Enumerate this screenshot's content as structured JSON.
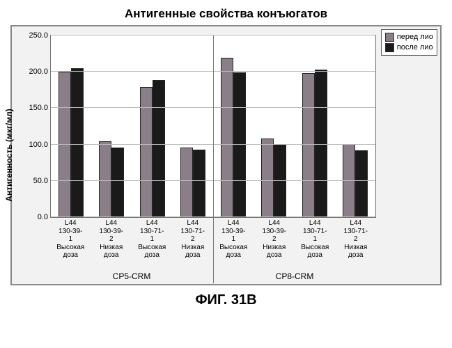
{
  "title": "Антигенные свойства конъюгатов",
  "footer": "ФИГ. 31B",
  "y_axis": {
    "label": "Антигенность (мкг/мл)",
    "min": 0,
    "max": 250,
    "ticks": [
      "0.0",
      "50.0",
      "100.0",
      "150.0",
      "200.0",
      "250.0"
    ],
    "tick_values": [
      0,
      50,
      100,
      150,
      200,
      250
    ]
  },
  "legend": {
    "series1": {
      "label": "перед лио",
      "color": "#8a7f88"
    },
    "series2": {
      "label": "после лио",
      "color": "#1a1a1a"
    }
  },
  "colors": {
    "plot_bg": "#ffffff",
    "frame_bg": "#f2f2f2",
    "grid": "#bbbbbb",
    "border": "#777777"
  },
  "groups": [
    {
      "label": "CP5-CRM",
      "cats": [
        {
          "label": [
            "L44",
            "130-39-",
            "1",
            "Высокая",
            "доза"
          ],
          "s1": 200,
          "s2": 205
        },
        {
          "label": [
            "L44",
            "130-39-",
            "2",
            "Низкая",
            "доза"
          ],
          "s1": 104,
          "s2": 96
        },
        {
          "label": [
            "L44",
            "130-71-",
            "1",
            "Высокая",
            "доза"
          ],
          "s1": 179,
          "s2": 189
        },
        {
          "label": [
            "L44",
            "130-71-",
            "2",
            "Низкая",
            "доза"
          ],
          "s1": 96,
          "s2": 93
        }
      ]
    },
    {
      "label": "CP8-CRM",
      "cats": [
        {
          "label": [
            "L44",
            "130-39-",
            "1",
            "Высокая",
            "доза"
          ],
          "s1": 219,
          "s2": 199
        },
        {
          "label": [
            "L44",
            "130-39-",
            "2",
            "Низкая",
            "доза"
          ],
          "s1": 108,
          "s2": 101
        },
        {
          "label": [
            "L44",
            "130-71-",
            "1",
            "Высокая",
            "доза"
          ],
          "s1": 198,
          "s2": 203
        },
        {
          "label": [
            "L44",
            "130-71-",
            "2",
            "Низкая",
            "доза"
          ],
          "s1": 101,
          "s2": 92
        }
      ]
    }
  ]
}
